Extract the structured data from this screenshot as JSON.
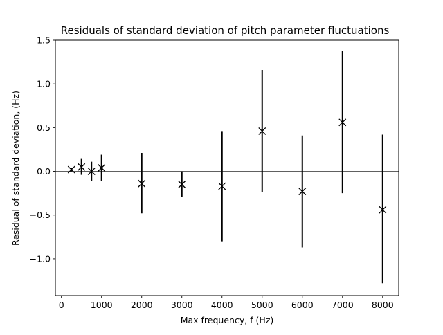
{
  "chart_data": {
    "type": "scatter",
    "title": "Residuals of standard deviation of pitch parameter fluctuations",
    "xlabel": "Max frequency, f (Hz)",
    "ylabel": "Residual of standard deviation, (Hz)",
    "xlim": [
      -150,
      8400
    ],
    "ylim": [
      -1.42,
      1.5
    ],
    "xticks": [
      0,
      1000,
      2000,
      3000,
      4000,
      5000,
      6000,
      7000,
      8000
    ],
    "yticks": [
      -1.0,
      -0.5,
      0.0,
      0.5,
      1.0,
      1.5
    ],
    "xtick_labels": [
      "0",
      "1000",
      "2000",
      "3000",
      "4000",
      "5000",
      "6000",
      "7000",
      "8000"
    ],
    "ytick_labels": [
      "−1.0",
      "−0.5",
      "0.0",
      "0.5",
      "1.0",
      "1.5"
    ],
    "grid": false,
    "reference_line_y": 0,
    "marker": "x",
    "series": [
      {
        "x": [
          250,
          500,
          750,
          1000,
          2000,
          3000,
          4000,
          5000,
          6000,
          7000,
          8000
        ],
        "y": [
          0.02,
          0.05,
          0.0,
          0.04,
          -0.14,
          -0.15,
          -0.17,
          0.46,
          -0.23,
          0.56,
          -0.44
        ],
        "err_low": [
          0.0,
          -0.04,
          -0.11,
          -0.11,
          -0.48,
          -0.29,
          -0.8,
          -0.24,
          -0.87,
          -0.25,
          -1.28
        ],
        "err_high": [
          0.04,
          0.15,
          0.11,
          0.19,
          0.21,
          0.0,
          0.46,
          1.16,
          0.41,
          1.38,
          0.42
        ],
        "color": "#000000"
      }
    ]
  }
}
